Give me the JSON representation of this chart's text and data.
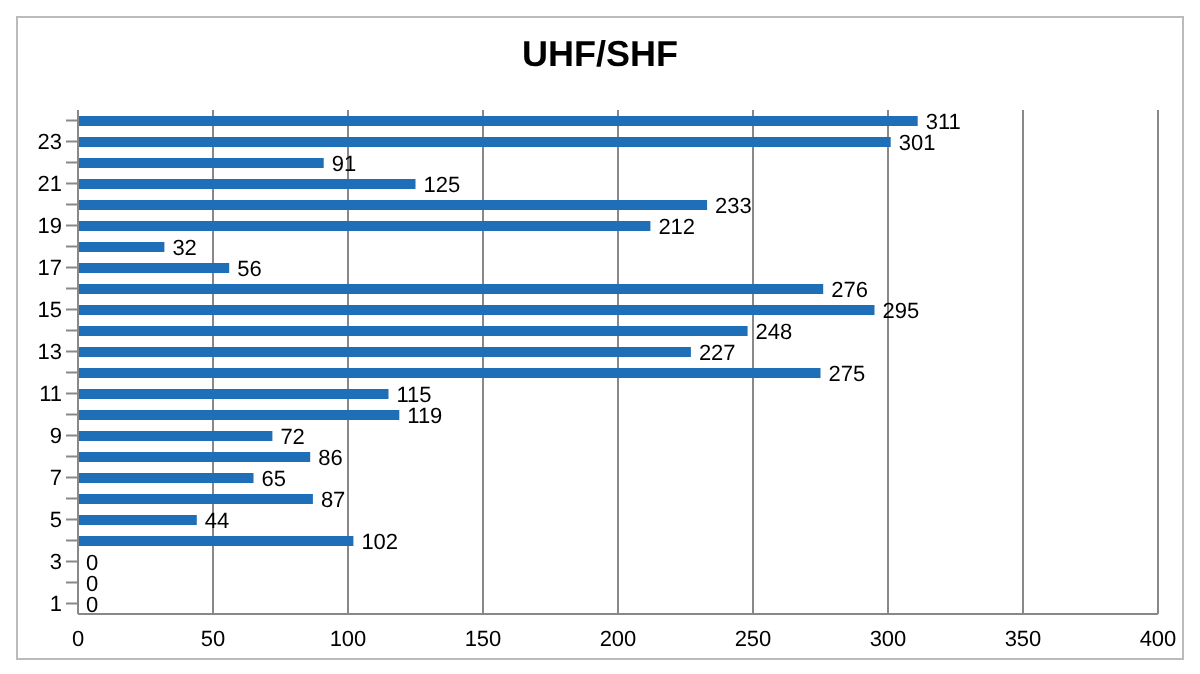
{
  "chart_data": {
    "type": "bar",
    "title": "UHF/SHF",
    "orientation": "horizontal",
    "categories": [
      null,
      "23",
      null,
      "21",
      null,
      "19",
      null,
      "17",
      null,
      "15",
      null,
      "13",
      null,
      "11",
      null,
      "9",
      null,
      "7",
      null,
      "5",
      null,
      "3",
      null,
      "1"
    ],
    "values": [
      311,
      301,
      91,
      125,
      233,
      212,
      32,
      56,
      276,
      295,
      248,
      227,
      275,
      115,
      119,
      72,
      86,
      65,
      87,
      44,
      102,
      0,
      0,
      0
    ],
    "color": "#1f6fb8",
    "xlim": [
      0,
      400
    ],
    "xticks": [
      0,
      50,
      100,
      150,
      200,
      250,
      300,
      350,
      400
    ],
    "grid": "x",
    "data_labels": true
  }
}
